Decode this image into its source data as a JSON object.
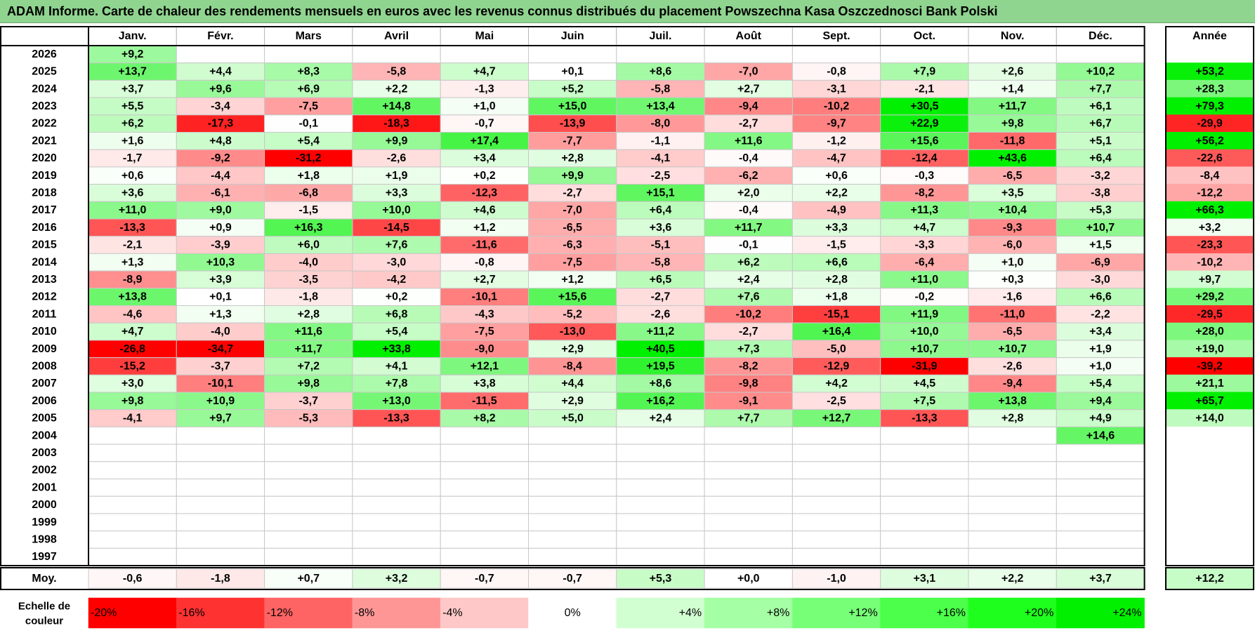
{
  "title": "ADAM Informe. Carte de chaleur des rendements mensuels en euros avec les revenus connus distribués du placement Powszechna Kasa Oszczednosci Bank Polski",
  "chart_data": {
    "type": "heatmap",
    "months": [
      "Janv.",
      "Févr.",
      "Mars",
      "Avril",
      "Mai",
      "Juin",
      "Juil.",
      "Août",
      "Sept.",
      "Oct.",
      "Nov.",
      "Déc."
    ],
    "annual_header": "Année",
    "rows": [
      {
        "year": "2026",
        "values": [
          "+9,2",
          null,
          null,
          null,
          null,
          null,
          null,
          null,
          null,
          null,
          null,
          null
        ],
        "annual": null
      },
      {
        "year": "2025",
        "values": [
          "+13,7",
          "+4,4",
          "+8,3",
          "-5,8",
          "+4,7",
          "+0,1",
          "+8,6",
          "-7,0",
          "-0,8",
          "+7,9",
          "+2,6",
          "+10,2"
        ],
        "annual": "+53,2"
      },
      {
        "year": "2024",
        "values": [
          "+3,7",
          "+9,6",
          "+6,9",
          "+2,2",
          "-1,3",
          "+5,2",
          "-5,8",
          "+2,7",
          "-3,1",
          "-2,1",
          "+1,4",
          "+7,7"
        ],
        "annual": "+28,3"
      },
      {
        "year": "2023",
        "values": [
          "+5,5",
          "-3,4",
          "-7,5",
          "+14,8",
          "+1,0",
          "+15,0",
          "+13,4",
          "-9,4",
          "-10,2",
          "+30,5",
          "+11,7",
          "+6,1"
        ],
        "annual": "+79,3"
      },
      {
        "year": "2022",
        "values": [
          "+6,2",
          "-17,3",
          "-0,1",
          "-18,3",
          "-0,7",
          "-13,9",
          "-8,0",
          "-2,7",
          "-9,7",
          "+22,9",
          "+9,8",
          "+6,7"
        ],
        "annual": "-29,9"
      },
      {
        "year": "2021",
        "values": [
          "+1,6",
          "+4,8",
          "+5,4",
          "+9,9",
          "+17,4",
          "-7,7",
          "-1,1",
          "+11,6",
          "-1,2",
          "+15,6",
          "-11,8",
          "+5,1"
        ],
        "annual": "+56,2"
      },
      {
        "year": "2020",
        "values": [
          "-1,7",
          "-9,2",
          "-31,2",
          "-2,6",
          "+3,4",
          "+2,8",
          "-4,1",
          "-0,4",
          "-4,7",
          "-12,4",
          "+43,6",
          "+6,4"
        ],
        "annual": "-22,6"
      },
      {
        "year": "2019",
        "values": [
          "+0,6",
          "-4,4",
          "+1,8",
          "+1,9",
          "+0,2",
          "+9,9",
          "-2,5",
          "-6,2",
          "+0,6",
          "-0,3",
          "-6,5",
          "-3,2"
        ],
        "annual": "-8,4"
      },
      {
        "year": "2018",
        "values": [
          "+3,6",
          "-6,1",
          "-6,8",
          "+3,3",
          "-12,3",
          "-2,7",
          "+15,1",
          "+2,0",
          "+2,2",
          "-8,2",
          "+3,5",
          "-3,8"
        ],
        "annual": "-12,2"
      },
      {
        "year": "2017",
        "values": [
          "+11,0",
          "+9,0",
          "-1,5",
          "+10,0",
          "+4,6",
          "-7,0",
          "+6,4",
          "-0,4",
          "-4,9",
          "+11,3",
          "+10,4",
          "+5,3"
        ],
        "annual": "+66,3"
      },
      {
        "year": "2016",
        "values": [
          "-13,3",
          "+0,9",
          "+16,3",
          "-14,5",
          "+1,2",
          "-6,5",
          "+3,6",
          "+11,7",
          "+3,3",
          "+4,7",
          "-9,3",
          "+10,7"
        ],
        "annual": "+3,2"
      },
      {
        "year": "2015",
        "values": [
          "-2,1",
          "-3,9",
          "+6,0",
          "+7,6",
          "-11,6",
          "-6,3",
          "-5,1",
          "-0,1",
          "-1,5",
          "-3,3",
          "-6,0",
          "+1,5"
        ],
        "annual": "-23,3"
      },
      {
        "year": "2014",
        "values": [
          "+1,3",
          "+10,3",
          "-4,0",
          "-3,0",
          "-0,8",
          "-7,5",
          "-5,8",
          "+6,2",
          "+6,6",
          "-6,4",
          "+1,0",
          "-6,9"
        ],
        "annual": "-10,2"
      },
      {
        "year": "2013",
        "values": [
          "-8,9",
          "+3,9",
          "-3,5",
          "-4,2",
          "+2,7",
          "+1,2",
          "+6,5",
          "+2,4",
          "+2,8",
          "+11,0",
          "+0,3",
          "-3,0"
        ],
        "annual": "+9,7"
      },
      {
        "year": "2012",
        "values": [
          "+13,8",
          "+0,1",
          "-1,8",
          "+0,2",
          "-10,1",
          "+15,6",
          "-2,7",
          "+7,6",
          "+1,8",
          "-0,2",
          "-1,6",
          "+6,6"
        ],
        "annual": "+29,2"
      },
      {
        "year": "2011",
        "values": [
          "-4,6",
          "+1,3",
          "+2,8",
          "+6,8",
          "-4,3",
          "-5,2",
          "-2,6",
          "-10,2",
          "-15,1",
          "+11,9",
          "-11,0",
          "-2,2"
        ],
        "annual": "-29,5"
      },
      {
        "year": "2010",
        "values": [
          "+4,7",
          "-4,0",
          "+11,6",
          "+5,4",
          "-7,5",
          "-13,0",
          "+11,2",
          "-2,7",
          "+16,4",
          "+10,0",
          "-6,5",
          "+3,4"
        ],
        "annual": "+28,0"
      },
      {
        "year": "2009",
        "values": [
          "-26,8",
          "-34,7",
          "+11,7",
          "+33,8",
          "-9,0",
          "+2,9",
          "+40,5",
          "+7,3",
          "-5,0",
          "+10,7",
          "+10,7",
          "+1,9"
        ],
        "annual": "+19,0"
      },
      {
        "year": "2008",
        "values": [
          "-15,2",
          "-3,7",
          "+7,2",
          "+4,1",
          "+12,1",
          "-8,4",
          "+19,5",
          "-8,2",
          "-12,9",
          "-31,9",
          "-2,6",
          "+1,0"
        ],
        "annual": "-39,2"
      },
      {
        "year": "2007",
        "values": [
          "+3,0",
          "-10,1",
          "+9,8",
          "+7,8",
          "+3,8",
          "+4,4",
          "+8,6",
          "-9,8",
          "+4,2",
          "+4,5",
          "-9,4",
          "+5,4"
        ],
        "annual": "+21,1"
      },
      {
        "year": "2006",
        "values": [
          "+9,8",
          "+10,9",
          "-3,7",
          "+13,0",
          "-11,5",
          "+2,9",
          "+16,2",
          "-9,1",
          "-2,5",
          "+7,5",
          "+13,8",
          "+9,4"
        ],
        "annual": "+65,7"
      },
      {
        "year": "2005",
        "values": [
          "-4,1",
          "+9,7",
          "-5,3",
          "-13,3",
          "+8,2",
          "+5,0",
          "+2,4",
          "+7,7",
          "+12,7",
          "-13,3",
          "+2,8",
          "+4,9"
        ],
        "annual": "+14,0"
      },
      {
        "year": "2004",
        "values": [
          null,
          null,
          null,
          null,
          null,
          null,
          null,
          null,
          null,
          null,
          null,
          "+14,6"
        ],
        "annual": null
      },
      {
        "year": "2003",
        "values": [
          null,
          null,
          null,
          null,
          null,
          null,
          null,
          null,
          null,
          null,
          null,
          null
        ],
        "annual": null
      },
      {
        "year": "2002",
        "values": [
          null,
          null,
          null,
          null,
          null,
          null,
          null,
          null,
          null,
          null,
          null,
          null
        ],
        "annual": null
      },
      {
        "year": "2001",
        "values": [
          null,
          null,
          null,
          null,
          null,
          null,
          null,
          null,
          null,
          null,
          null,
          null
        ],
        "annual": null
      },
      {
        "year": "2000",
        "values": [
          null,
          null,
          null,
          null,
          null,
          null,
          null,
          null,
          null,
          null,
          null,
          null
        ],
        "annual": null
      },
      {
        "year": "1999",
        "values": [
          null,
          null,
          null,
          null,
          null,
          null,
          null,
          null,
          null,
          null,
          null,
          null
        ],
        "annual": null
      },
      {
        "year": "1998",
        "values": [
          null,
          null,
          null,
          null,
          null,
          null,
          null,
          null,
          null,
          null,
          null,
          null
        ],
        "annual": null
      },
      {
        "year": "1997",
        "values": [
          null,
          null,
          null,
          null,
          null,
          null,
          null,
          null,
          null,
          null,
          null,
          null
        ],
        "annual": null
      }
    ],
    "average": {
      "label": "Moy.",
      "values": [
        "-0,6",
        "-1,8",
        "+0,7",
        "+3,2",
        "-0,7",
        "-0,7",
        "+5,3",
        "+0,0",
        "-1,0",
        "+3,1",
        "+2,2",
        "+3,7"
      ],
      "annual": "+12,2"
    },
    "scale": {
      "label_lines": [
        "Echelle de",
        "couleur"
      ],
      "steps": [
        {
          "label": "-20%",
          "color": "#ff0000"
        },
        {
          "label": "-16%",
          "color": "#ff3232"
        },
        {
          "label": "-12%",
          "color": "#ff6464"
        },
        {
          "label": "-8%",
          "color": "#ff9696"
        },
        {
          "label": "-4%",
          "color": "#ffc8c8"
        },
        {
          "label": "0%",
          "color": "#ffffff"
        },
        {
          "label": "+4%",
          "color": "#d2ffd2"
        },
        {
          "label": "+8%",
          "color": "#a5ffa5"
        },
        {
          "label": "+12%",
          "color": "#78ff78"
        },
        {
          "label": "+16%",
          "color": "#4bff4b"
        },
        {
          "label": "+20%",
          "color": "#1eff1e"
        },
        {
          "label": "+24%",
          "color": "#00f000"
        }
      ]
    }
  }
}
